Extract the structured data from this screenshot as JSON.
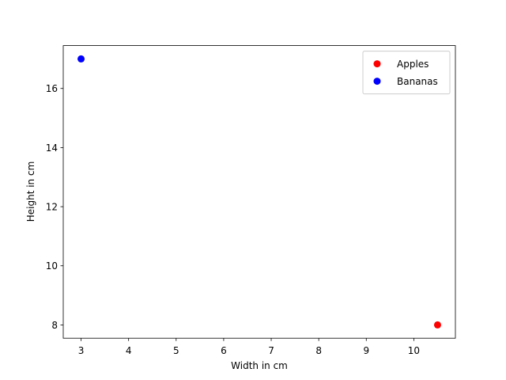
{
  "chart_data": {
    "type": "scatter",
    "xlabel": "Width in cm",
    "ylabel": "Height in cm",
    "series": [
      {
        "name": "Apples",
        "color": "red",
        "x": [
          10.5
        ],
        "values": [
          8
        ]
      },
      {
        "name": "Bananas",
        "color": "blue",
        "x": [
          3
        ],
        "values": [
          17
        ]
      }
    ],
    "xlim": [
      2.625,
      10.875
    ],
    "ylim": [
      7.55,
      17.45
    ],
    "xticks": [
      3,
      4,
      5,
      6,
      7,
      8,
      9,
      10
    ],
    "yticks": [
      8,
      10,
      12,
      14,
      16
    ],
    "grid": false,
    "legend": "upper right"
  }
}
